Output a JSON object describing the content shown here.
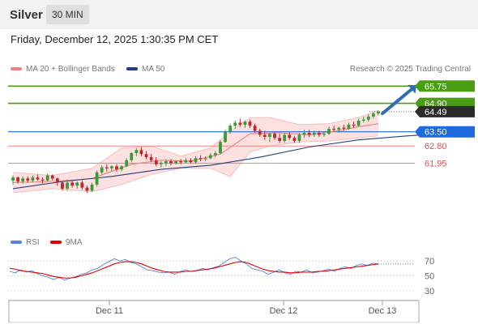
{
  "header": {
    "symbol": "Silver",
    "timeframe": "30 MIN"
  },
  "datetime": "Friday, December 12, 2025 1:30:35 PM CET",
  "legend": {
    "ma20": {
      "label": "MA 20 + Bollinger Bands",
      "color": "#f08080"
    },
    "ma50": {
      "label": "MA 50",
      "color": "#1f3f7f"
    },
    "source": "Research © 2025 Trading Central"
  },
  "rsi_legend": {
    "rsi": {
      "label": "RSI",
      "color": "#5a7fdb"
    },
    "ma9": {
      "label": "9MA",
      "color": "#e00000"
    }
  },
  "colors": {
    "up_candle": "#3a9a3a",
    "down_candle": "#c0272d",
    "resistance": "#4a9e14",
    "pivot": "#1e6be0",
    "support": "#f08585",
    "current_price": "#2b2b2b",
    "band_fill": "#fde0e0",
    "arrow": "#2f6eb0"
  },
  "chart_data": [
    {
      "type": "candlestick",
      "title": "Silver",
      "timeframe": "30 MIN",
      "x_ticks": [
        "Dec 11",
        "Dec 12",
        "Dec 13"
      ],
      "ylim": [
        59.3,
        66.2
      ],
      "current_price": 64.49,
      "levels": [
        {
          "label": "65.75",
          "value": 65.75,
          "role": "resistance"
        },
        {
          "label": "64.90",
          "value": 64.9,
          "role": "resistance"
        },
        {
          "label": "64.49",
          "value": 64.49,
          "role": "current"
        },
        {
          "label": "63.50",
          "value": 63.5,
          "role": "pivot"
        },
        {
          "label": "62.80",
          "value": 62.8,
          "role": "support"
        },
        {
          "label": "61.95",
          "value": 61.95,
          "role": "support"
        }
      ],
      "arrow": {
        "from": 64.4,
        "to": 65.75,
        "direction": "up"
      },
      "candles": [
        [
          61.1,
          61.35,
          60.9,
          61.25
        ],
        [
          61.25,
          61.3,
          60.95,
          61.05
        ],
        [
          61.05,
          61.3,
          60.95,
          61.2
        ],
        [
          61.2,
          61.3,
          61.0,
          61.1
        ],
        [
          61.1,
          61.35,
          61.0,
          61.25
        ],
        [
          61.25,
          61.4,
          61.1,
          61.15
        ],
        [
          61.15,
          61.25,
          60.95,
          61.1
        ],
        [
          61.1,
          61.45,
          61.05,
          61.35
        ],
        [
          61.35,
          61.4,
          61.1,
          61.2
        ],
        [
          61.2,
          61.25,
          60.85,
          61.0
        ],
        [
          61.0,
          61.05,
          60.6,
          60.7
        ],
        [
          60.7,
          61.15,
          60.6,
          61.0
        ],
        [
          61.0,
          61.1,
          60.75,
          60.85
        ],
        [
          60.85,
          61.05,
          60.7,
          61.0
        ],
        [
          61.0,
          61.1,
          60.65,
          60.75
        ],
        [
          60.75,
          60.85,
          60.5,
          60.6
        ],
        [
          60.6,
          61.0,
          60.55,
          60.9
        ],
        [
          60.9,
          61.6,
          60.8,
          61.5
        ],
        [
          61.5,
          61.85,
          61.4,
          61.75
        ],
        [
          61.75,
          61.9,
          61.55,
          61.7
        ],
        [
          61.7,
          61.85,
          61.55,
          61.8
        ],
        [
          61.8,
          61.9,
          61.55,
          61.65
        ],
        [
          61.65,
          61.85,
          61.55,
          61.8
        ],
        [
          61.8,
          62.2,
          61.75,
          62.1
        ],
        [
          62.1,
          62.5,
          62.0,
          62.45
        ],
        [
          62.45,
          62.7,
          62.3,
          62.6
        ],
        [
          62.6,
          62.75,
          62.3,
          62.4
        ],
        [
          62.4,
          62.55,
          62.15,
          62.25
        ],
        [
          62.25,
          62.4,
          62.0,
          62.1
        ],
        [
          62.1,
          62.25,
          61.8,
          61.9
        ],
        [
          61.9,
          62.05,
          61.75,
          61.95
        ],
        [
          61.95,
          62.15,
          61.8,
          62.05
        ],
        [
          62.05,
          62.15,
          61.85,
          61.95
        ],
        [
          61.95,
          62.1,
          61.9,
          62.05
        ],
        [
          62.05,
          62.15,
          61.9,
          62.0
        ],
        [
          62.0,
          62.2,
          61.95,
          62.1
        ],
        [
          62.1,
          62.2,
          61.95,
          62.0
        ],
        [
          62.0,
          62.3,
          61.95,
          62.2
        ],
        [
          62.2,
          62.35,
          62.05,
          62.15
        ],
        [
          62.15,
          62.3,
          62.05,
          62.2
        ],
        [
          62.2,
          62.45,
          62.15,
          62.35
        ],
        [
          62.35,
          62.55,
          62.25,
          62.45
        ],
        [
          62.45,
          63.1,
          62.4,
          63.0
        ],
        [
          63.0,
          63.6,
          62.95,
          63.5
        ],
        [
          63.5,
          63.9,
          63.4,
          63.8
        ],
        [
          63.8,
          64.05,
          63.65,
          63.95
        ],
        [
          63.95,
          64.15,
          63.75,
          63.85
        ],
        [
          63.85,
          64.05,
          63.7,
          64.0
        ],
        [
          64.0,
          64.1,
          63.7,
          63.8
        ],
        [
          63.8,
          63.9,
          63.45,
          63.55
        ],
        [
          63.55,
          63.65,
          63.25,
          63.35
        ],
        [
          63.35,
          63.55,
          63.1,
          63.25
        ],
        [
          63.25,
          63.45,
          63.0,
          63.4
        ],
        [
          63.4,
          63.5,
          63.1,
          63.2
        ],
        [
          63.2,
          63.4,
          62.95,
          63.05
        ],
        [
          63.05,
          63.45,
          62.95,
          63.35
        ],
        [
          63.35,
          63.5,
          63.1,
          63.2
        ],
        [
          63.2,
          63.3,
          62.95,
          63.05
        ],
        [
          63.05,
          63.45,
          62.95,
          63.35
        ],
        [
          63.35,
          63.6,
          63.2,
          63.45
        ],
        [
          63.45,
          63.6,
          63.25,
          63.35
        ],
        [
          63.35,
          63.55,
          63.25,
          63.45
        ],
        [
          63.45,
          63.55,
          63.25,
          63.35
        ],
        [
          63.35,
          63.5,
          63.25,
          63.4
        ],
        [
          63.4,
          63.75,
          63.35,
          63.65
        ],
        [
          63.65,
          63.8,
          63.5,
          63.6
        ],
        [
          63.6,
          63.75,
          63.45,
          63.7
        ],
        [
          63.7,
          63.85,
          63.55,
          63.65
        ],
        [
          63.65,
          63.95,
          63.6,
          63.85
        ],
        [
          63.85,
          64.0,
          63.7,
          63.8
        ],
        [
          63.8,
          64.15,
          63.75,
          64.05
        ],
        [
          64.05,
          64.25,
          63.95,
          64.1
        ],
        [
          64.1,
          64.35,
          64.0,
          64.25
        ],
        [
          64.25,
          64.45,
          64.15,
          64.4
        ],
        [
          64.4,
          64.55,
          64.3,
          64.49
        ]
      ],
      "ma50": [
        [
          0,
          60.7
        ],
        [
          10,
          61.05
        ],
        [
          20,
          61.3
        ],
        [
          30,
          61.65
        ],
        [
          40,
          61.85
        ],
        [
          50,
          62.25
        ],
        [
          60,
          62.75
        ],
        [
          70,
          63.1
        ],
        [
          80,
          63.3
        ],
        [
          90,
          63.45
        ]
      ],
      "ma20": [
        [
          0,
          61.0
        ],
        [
          8,
          61.05
        ],
        [
          16,
          61.2
        ],
        [
          24,
          61.9
        ],
        [
          30,
          62.1
        ],
        [
          36,
          62.05
        ],
        [
          42,
          62.4
        ],
        [
          48,
          63.4
        ],
        [
          54,
          63.45
        ],
        [
          60,
          63.35
        ],
        [
          66,
          63.55
        ],
        [
          70,
          63.75
        ],
        [
          74,
          63.9
        ]
      ],
      "bollinger_upper": [
        [
          0,
          61.5
        ],
        [
          8,
          61.35
        ],
        [
          16,
          61.7
        ],
        [
          22,
          62.7
        ],
        [
          28,
          62.8
        ],
        [
          34,
          62.3
        ],
        [
          40,
          62.7
        ],
        [
          44,
          63.5
        ],
        [
          48,
          64.2
        ],
        [
          52,
          64.2
        ],
        [
          58,
          63.85
        ],
        [
          64,
          63.9
        ],
        [
          70,
          64.2
        ],
        [
          74,
          64.55
        ]
      ],
      "bollinger_lower": [
        [
          0,
          60.5
        ],
        [
          8,
          60.7
        ],
        [
          16,
          60.55
        ],
        [
          22,
          60.9
        ],
        [
          28,
          61.4
        ],
        [
          34,
          61.7
        ],
        [
          40,
          61.7
        ],
        [
          44,
          61.3
        ],
        [
          48,
          62.5
        ],
        [
          52,
          62.8
        ],
        [
          58,
          63.0
        ],
        [
          64,
          63.05
        ],
        [
          70,
          63.2
        ],
        [
          74,
          63.3
        ]
      ]
    },
    {
      "type": "line",
      "title": "RSI",
      "ylim": [
        20,
        80
      ],
      "y_ticks": [
        70,
        50,
        30
      ],
      "series": [
        {
          "name": "RSI",
          "values": [
            56,
            54,
            58,
            55,
            57,
            53,
            50,
            48,
            45,
            48,
            44,
            47,
            49,
            52,
            54,
            58,
            60,
            65,
            69,
            73,
            70,
            72,
            68,
            66,
            62,
            58,
            57,
            55,
            54,
            55,
            52,
            56,
            58,
            56,
            57,
            60,
            58,
            61,
            63,
            68,
            73,
            75,
            70,
            66,
            60,
            58,
            56,
            52,
            55,
            58,
            54,
            52,
            56,
            55,
            58,
            54,
            55,
            57,
            59,
            56,
            60,
            62,
            60,
            64,
            66,
            64,
            67,
            66
          ]
        },
        {
          "name": "9MA",
          "values": [
            60,
            59,
            57,
            56,
            55,
            54,
            53,
            51,
            49,
            48,
            47,
            47,
            48,
            50,
            52,
            54,
            57,
            60,
            63,
            66,
            68,
            69,
            69,
            68,
            66,
            63,
            60,
            58,
            56,
            55,
            55,
            55,
            56,
            56,
            57,
            58,
            59,
            60,
            62,
            64,
            66,
            68,
            69,
            68,
            65,
            62,
            59,
            57,
            56,
            55,
            55,
            54,
            54,
            55,
            55,
            55,
            56,
            56,
            57,
            58,
            59,
            60,
            61,
            62,
            63,
            64,
            65,
            66
          ]
        }
      ]
    }
  ]
}
